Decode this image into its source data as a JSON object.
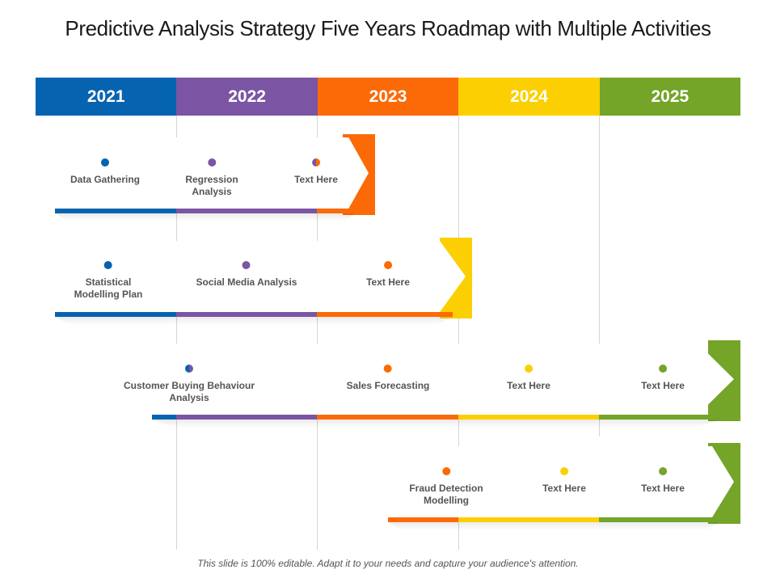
{
  "title": "Predictive Analysis Strategy Five Years Roadmap with Multiple Activities",
  "colors": {
    "2021": "#0563b0",
    "2022": "#7b55a4",
    "2023": "#fb6a06",
    "2024": "#fccf02",
    "2025": "#74a428"
  },
  "years": [
    "2021",
    "2022",
    "2023",
    "2024",
    "2025"
  ],
  "rows": [
    {
      "activities": [
        {
          "label": "Data Gathering",
          "year": "2021"
        },
        {
          "label": "Regression\nAnalysis",
          "year": "2022"
        },
        {
          "label": "Text Here",
          "year": "2022/2023"
        }
      ]
    },
    {
      "activities": [
        {
          "label": "Statistical\nModelling Plan",
          "year": "2021"
        },
        {
          "label": "Social Media Analysis",
          "year": "2022"
        },
        {
          "label": "Text Here",
          "year": "2023"
        }
      ]
    },
    {
      "activities": [
        {
          "label": "Customer Buying Behaviour\nAnalysis",
          "year": "2021/2022"
        },
        {
          "label": "Sales Forecasting",
          "year": "2023"
        },
        {
          "label": "Text Here",
          "year": "2024"
        },
        {
          "label": "Text Here",
          "year": "2025"
        }
      ]
    },
    {
      "activities": [
        {
          "label": "Fraud Detection\nModelling",
          "year": "2023"
        },
        {
          "label": "Text Here",
          "year": "2024"
        },
        {
          "label": "Text Here",
          "year": "2025"
        }
      ]
    }
  ],
  "footer": "This slide is 100% editable. Adapt it to your needs and capture your audience's attention."
}
